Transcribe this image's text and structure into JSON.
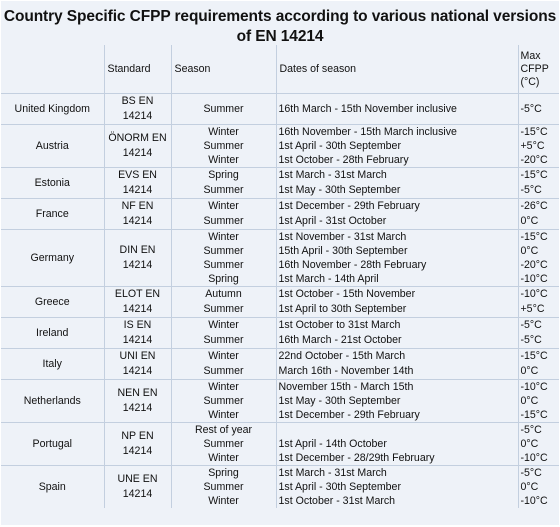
{
  "title": "Country Specific CFPP requirements according to various national versions of EN 14214",
  "headers": {
    "standard": "Standard",
    "season": "Season",
    "dates": "Dates of season",
    "max_line1": "Max",
    "max_line2": "CFPP",
    "max_line3": "(°C)"
  },
  "rows": [
    {
      "country": "United Kingdom",
      "standard": "BS EN 14214",
      "season": "Summer",
      "dates": "16th March - 15th November inclusive",
      "max": "-5°C"
    },
    {
      "country": "Austria",
      "standard": "ÖNORM EN 14214",
      "season": "Winter",
      "dates": "16th November - 15th March inclusive",
      "max": "-15°C"
    },
    {
      "season": "Summer",
      "dates": "1st April - 30th September",
      "max": "+5°C"
    },
    {
      "season": "Winter",
      "dates": "1st October - 28th February",
      "max": "-20°C"
    },
    {
      "country": "Estonia",
      "standard": "EVS EN 14214",
      "season": "Spring",
      "dates": "1st March - 31st March",
      "max": "-15°C"
    },
    {
      "season": "Summer",
      "dates": "1st May - 30th September",
      "max": "-5°C"
    },
    {
      "country": "France",
      "standard": "NF EN 14214",
      "season": "Winter",
      "dates": "1st December - 29th February",
      "max": "-26°C"
    },
    {
      "season": "Summer",
      "dates": "1st April - 31st October",
      "max": "0°C"
    },
    {
      "country": "Germany",
      "standard": "DIN EN 14214",
      "season": "Winter",
      "dates": "1st November - 31st March",
      "max": "-15°C"
    },
    {
      "season": "Summer",
      "dates": "15th April - 30th September",
      "max": "0°C"
    },
    {
      "season": "Summer",
      "dates": "16th November - 28th February",
      "max": "-20°C"
    },
    {
      "season": "Spring",
      "dates": "1st March - 14th April",
      "max": "-10°C"
    },
    {
      "country": "Greece",
      "standard": "ELOT EN 14214",
      "season": "Autumn",
      "dates": "1st October - 15th November",
      "max": "-10°C"
    },
    {
      "season": "Summer",
      "dates": "1st April to 30th September",
      "max": "+5°C"
    },
    {
      "country": "Ireland",
      "standard": "IS EN 14214",
      "season": "Winter",
      "dates": "1st October to 31st March",
      "max": "-5°C"
    },
    {
      "season": "Summer",
      "dates": "16th March - 21st October",
      "max": "-5°C"
    },
    {
      "country": "Italy",
      "standard": "UNI EN 14214",
      "season": "Winter",
      "dates": "22nd October - 15th March",
      "max": "-15°C"
    },
    {
      "season": "Summer",
      "dates": "March 16th - November 14th",
      "max": "0°C"
    },
    {
      "country": "Netherlands",
      "standard": "NEN EN 14214",
      "season": "Winter",
      "dates": "November 15th - March 15th",
      "max": "-10°C"
    },
    {
      "season": "Summer",
      "dates": "1st May - 30th September",
      "max": "0°C"
    },
    {
      "season": "Winter",
      "dates": "1st December - 29th February",
      "max": "-15°C"
    },
    {
      "country": "Portugal",
      "standard": "NP EN 14214",
      "season": "Rest of year",
      "dates": "",
      "max": "-5°C"
    },
    {
      "season": "Summer",
      "dates": "1st April - 14th October",
      "max": "0°C"
    },
    {
      "season": "Winter",
      "dates": "1st December - 28/29th February",
      "max": "-10°C"
    },
    {
      "country": "Spain",
      "standard": "UNE EN 14214",
      "season": "Spring",
      "dates": "1st March - 31st March",
      "max": "-5°C"
    },
    {
      "season": "Summer",
      "dates": "1st April - 30th September",
      "max": "0°C"
    },
    {
      "season": "Winter",
      "dates": "1st October - 31st March",
      "max": "-10°C"
    }
  ]
}
